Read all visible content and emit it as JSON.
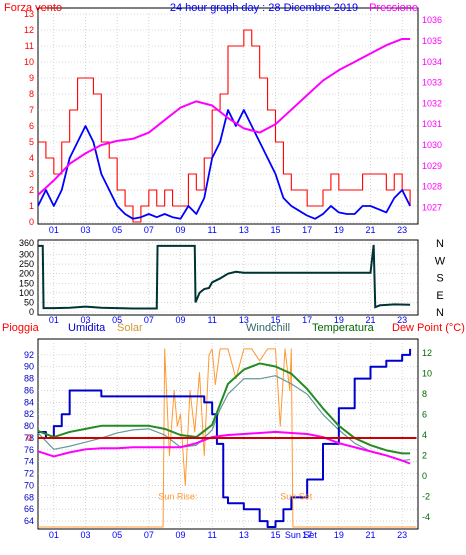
{
  "chart_data": [
    {
      "type": "line",
      "title": "24 hour graph day : 28 Dicembre 2019",
      "left_axis_label": "Forza vento",
      "right_axis_label": "Pressione",
      "x_ticks": [
        "01",
        "03",
        "05",
        "07",
        "09",
        "11",
        "13",
        "15",
        "17",
        "19",
        "21",
        "23"
      ],
      "y_left_ticks": [
        0,
        1,
        2,
        3,
        4,
        5,
        6,
        7,
        8,
        9,
        10,
        11,
        12,
        13
      ],
      "y_left_range": [
        0,
        13
      ],
      "y_right_ticks": [
        1027,
        1028,
        1029,
        1030,
        1031,
        1032,
        1033,
        1034,
        1035,
        1036
      ],
      "y_right_range": [
        1026.3,
        1036.3
      ],
      "grid": true,
      "colors": {
        "gust": "#ff0000",
        "wind": "#0000ff",
        "pressure": "#ff00ff",
        "text_red": "#ff0000",
        "text_blue": "#0000ff",
        "text_magenta": "#ff00ff"
      },
      "series": [
        {
          "key": "gust",
          "x": [
            0,
            0.5,
            1,
            1.5,
            2,
            2.5,
            3,
            3.5,
            4,
            4.5,
            5,
            5.5,
            6,
            6.5,
            7,
            7.5,
            8,
            8.5,
            9,
            9.5,
            10,
            10.5,
            11,
            11.5,
            12,
            12.5,
            13,
            13.5,
            14,
            14.5,
            15,
            15.5,
            16,
            16.5,
            17,
            17.5,
            18,
            18.5,
            19,
            19.5,
            20,
            20.5,
            21,
            21.5,
            22,
            22.5,
            23,
            23.5
          ],
          "values": [
            5,
            4,
            3,
            5,
            7,
            9,
            9,
            8,
            5,
            4,
            2,
            1,
            0,
            1,
            2,
            1,
            2,
            1,
            1,
            3,
            2,
            4,
            7,
            8,
            11,
            11,
            12,
            11,
            9,
            7,
            5,
            3,
            2,
            2,
            1,
            1,
            2,
            3,
            2,
            2,
            2,
            3,
            3,
            3,
            2,
            3,
            2,
            1
          ]
        },
        {
          "key": "wind",
          "x": [
            0,
            0.5,
            1,
            1.5,
            2,
            2.5,
            3,
            3.5,
            4,
            4.5,
            5,
            5.5,
            6,
            6.5,
            7,
            7.5,
            8,
            8.5,
            9,
            9.5,
            10,
            10.5,
            11,
            11.5,
            12,
            12.5,
            13,
            13.5,
            14,
            14.5,
            15,
            15.5,
            16,
            16.5,
            17,
            17.5,
            18,
            18.5,
            19,
            19.5,
            20,
            20.5,
            21,
            21.5,
            22,
            22.5,
            23,
            23.5
          ],
          "values": [
            1,
            2,
            1,
            2,
            4,
            5,
            6,
            5,
            3,
            2,
            1,
            0.5,
            0.2,
            0.3,
            0.5,
            0.3,
            0.5,
            0.3,
            0.2,
            1,
            0.5,
            1.5,
            4,
            5,
            7,
            6,
            7,
            6,
            5,
            4,
            3,
            1.5,
            1,
            0.7,
            0.4,
            0.2,
            0.5,
            1,
            0.6,
            0.5,
            0.5,
            1,
            1,
            0.8,
            0.6,
            1.5,
            2,
            1
          ]
        },
        {
          "key": "pressure",
          "x": [
            0,
            1,
            2,
            3,
            4,
            5,
            6,
            7,
            8,
            9,
            10,
            11,
            12,
            13,
            14,
            15,
            16,
            17,
            18,
            19,
            20,
            21,
            22,
            23,
            23.5
          ],
          "values": [
            1027.6,
            1028.3,
            1029.1,
            1029.6,
            1030.0,
            1030.2,
            1030.3,
            1030.6,
            1031.2,
            1031.8,
            1032.1,
            1031.9,
            1031.3,
            1030.8,
            1030.6,
            1031.0,
            1031.7,
            1032.4,
            1033.1,
            1033.6,
            1034.0,
            1034.4,
            1034.8,
            1035.1,
            1035.1
          ]
        }
      ]
    },
    {
      "type": "line",
      "x_ticks": [
        "01",
        "03",
        "05",
        "07",
        "09",
        "11",
        "13",
        "15",
        "17",
        "19",
        "21",
        "23"
      ],
      "y_left_ticks": [
        0,
        50,
        100,
        150,
        200,
        250,
        300,
        360
      ],
      "y_left_range": [
        0,
        360
      ],
      "right_labels": [
        "N",
        "W",
        "S",
        "E",
        "N"
      ],
      "grid": true,
      "colors": {
        "direction": "#003333"
      },
      "series": [
        {
          "key": "direction",
          "x": [
            0,
            0.3,
            0.35,
            1,
            2,
            3,
            4,
            5,
            6,
            7,
            7.5,
            7.55,
            9.9,
            9.95,
            10.2,
            10.5,
            10.8,
            11,
            11.5,
            12,
            12.5,
            13,
            15,
            17,
            19,
            21,
            21.2,
            21.3,
            21.6,
            22.5,
            23.5
          ],
          "values": [
            345,
            345,
            20,
            20,
            22,
            28,
            22,
            20,
            18,
            18,
            18,
            345,
            345,
            50,
            100,
            120,
            125,
            155,
            175,
            200,
            210,
            205,
            205,
            205,
            205,
            205,
            350,
            25,
            35,
            40,
            38
          ]
        }
      ]
    },
    {
      "type": "line",
      "legend": [
        "Pioggia",
        "Umidita",
        "Solar",
        "Windchill",
        "Temperatura",
        "Dew Point (°C)"
      ],
      "x_ticks": [
        "01",
        "03",
        "05",
        "07",
        "09",
        "11",
        "13",
        "15",
        "17",
        "19",
        "21",
        "23"
      ],
      "y_left_ticks": [
        64,
        66,
        68,
        70,
        72,
        74,
        76,
        78,
        80,
        82,
        84,
        86,
        88,
        90,
        92
      ],
      "y_left_range": [
        63,
        94
      ],
      "y_right_ticks": [
        -4,
        -2,
        0,
        2,
        4,
        6,
        8,
        10,
        12
      ],
      "y_right_range": [
        -5,
        13
      ],
      "rain_zero_label": "0",
      "annotations": [
        "Sun Rise:",
        "Sun Set"
      ],
      "x_extra_label": "Sun Set",
      "grid": true,
      "colors": {
        "rain": "#cc0000",
        "humidity": "#0000cc",
        "solar": "#ff9933",
        "windchill": "#669999",
        "temperature": "#228b22",
        "dewpoint": "#ff00ff",
        "text_blue": "#0000cc",
        "text_red": "#ff0000",
        "text_green": "#006600"
      },
      "series": [
        {
          "key": "humidity",
          "axis": "left",
          "x": [
            0,
            0.5,
            1,
            1.5,
            2,
            3,
            4,
            5,
            6,
            7,
            8,
            9,
            9.5,
            10,
            10.5,
            11,
            11.3,
            11.7,
            12,
            13,
            14,
            14.5,
            15,
            15.5,
            16,
            17,
            18,
            19,
            20,
            21,
            22,
            23,
            23.5
          ],
          "values": [
            79,
            78,
            80,
            82,
            86,
            86,
            85,
            85,
            85,
            85,
            85,
            85,
            85,
            85,
            84,
            82,
            77,
            68,
            67,
            66,
            64,
            63,
            64,
            66,
            68,
            71,
            77,
            83,
            88,
            90,
            91,
            92,
            93
          ]
        },
        {
          "key": "temperature",
          "axis": "right",
          "x": [
            0,
            1,
            2,
            3,
            4,
            5,
            6,
            7,
            8,
            9,
            10,
            11,
            11.5,
            12,
            13,
            14,
            15,
            16,
            17,
            18,
            19,
            20,
            21,
            22,
            23,
            23.5
          ],
          "values": [
            4.4,
            3.8,
            4.3,
            4.6,
            4.9,
            4.9,
            4.9,
            4.9,
            4.6,
            4.0,
            3.8,
            5.0,
            7.0,
            9.0,
            10.4,
            11.0,
            10.7,
            10.0,
            8.5,
            6.6,
            4.9,
            3.7,
            3.0,
            2.5,
            2.2,
            2.2
          ]
        },
        {
          "key": "windchill",
          "axis": "right",
          "x": [
            0,
            1,
            2,
            3,
            4,
            5,
            6,
            7,
            8,
            9,
            10,
            11,
            11.5,
            12,
            13,
            14,
            15,
            16,
            17,
            18,
            19,
            20,
            21,
            22,
            23,
            23.5
          ],
          "values": [
            4.2,
            2.6,
            2.9,
            3.3,
            3.7,
            4.2,
            4.5,
            4.6,
            4.0,
            2.8,
            3.0,
            4.5,
            6.5,
            8.0,
            9.5,
            9.5,
            9.8,
            9.0,
            8.0,
            6.0,
            4.5,
            3.2,
            2.4,
            2.0,
            1.5,
            1.6
          ]
        },
        {
          "key": "dewpoint",
          "axis": "right",
          "x": [
            0,
            1,
            2,
            3,
            4,
            5,
            6,
            7,
            8,
            9,
            10,
            11,
            12,
            13,
            14,
            15,
            16,
            17,
            18,
            19,
            20,
            21,
            22,
            23,
            23.5
          ],
          "values": [
            2.4,
            1.9,
            2.3,
            2.6,
            2.7,
            2.7,
            2.8,
            2.8,
            2.8,
            2.8,
            3.2,
            3.8,
            4.0,
            4.1,
            4.2,
            4.3,
            4.2,
            4.1,
            3.8,
            3.2,
            2.8,
            2.4,
            2.0,
            1.5,
            1.2
          ]
        },
        {
          "key": "solar",
          "axis": "left",
          "x": [
            0,
            7.9,
            8.0,
            8.3,
            8.6,
            8.8,
            9.0,
            9.3,
            9.6,
            9.9,
            10.2,
            10.5,
            10.8,
            11.0,
            11.2,
            11.5,
            12,
            12.5,
            13,
            13.5,
            14,
            14.5,
            15,
            15.3,
            15.6,
            15.9,
            16.0,
            16.1,
            23.9
          ],
          "values": [
            63,
            63,
            93,
            75,
            86,
            80,
            82,
            70,
            86,
            79,
            89,
            75,
            92,
            93,
            87,
            93,
            93,
            88,
            93,
            93,
            91,
            93,
            93,
            80,
            93,
            86,
            93,
            63,
            63
          ]
        },
        {
          "key": "rain",
          "axis": "left",
          "x": [
            0,
            23.9
          ],
          "values": [
            78,
            78
          ]
        }
      ]
    }
  ]
}
